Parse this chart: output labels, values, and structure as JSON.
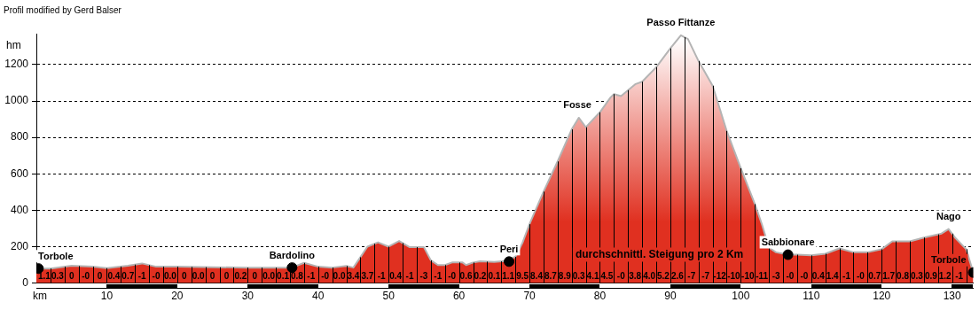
{
  "chart_data": {
    "type": "area",
    "title": "Profil modified by Gerd Balser",
    "xlabel": "km",
    "ylabel": "hm",
    "xlim": [
      0,
      133
    ],
    "xticks": [
      10,
      20,
      30,
      40,
      50,
      60,
      70,
      80,
      90,
      100,
      110,
      120,
      130
    ],
    "ylim": [
      0,
      1370
    ],
    "yticks": [
      0,
      200,
      400,
      600,
      800,
      1000,
      1200
    ],
    "grid": "y",
    "legend": false,
    "series": [
      {
        "color": "#e03020",
        "x": [
          0,
          2,
          5,
          8,
          10,
          13,
          15,
          17,
          20,
          25,
          30,
          36.3,
          38,
          40,
          42,
          44,
          45,
          46,
          47,
          48.5,
          50,
          51.5,
          53,
          55,
          56,
          57,
          58,
          59,
          60.5,
          61,
          62,
          63,
          65,
          66.5,
          68,
          69,
          70,
          72,
          74,
          76,
          77,
          78,
          80,
          81.5,
          82,
          83,
          85,
          86,
          88,
          90,
          91.5,
          92.5,
          94,
          96,
          98,
          100,
          102,
          103,
          104,
          105,
          106.7,
          108,
          110,
          112,
          114,
          116,
          118,
          120,
          121.5,
          124,
          126,
          128.5,
          129.5,
          130.5,
          132,
          133
        ],
        "values": [
          80,
          80,
          95,
          90,
          82,
          95,
          108,
          90,
          90,
          87,
          85,
          85,
          111,
          90,
          85,
          94,
          85,
          142,
          200,
          224,
          200,
          231,
          197,
          198,
          125,
          99,
          99,
          113,
          113,
          99,
          113,
          120,
          116,
          121,
          144,
          220,
          323,
          502,
          668,
          844,
          908,
          856,
          938,
          1019,
          1038,
          1027,
          1092,
          1106,
          1186,
          1289,
          1361,
          1340,
          1220,
          1084,
          836,
          631,
          434,
          323,
          195,
          169,
          156,
          156,
          152,
          161,
          190,
          169,
          169,
          186,
          229,
          229,
          250,
          272,
          297,
          246,
          186,
          58
        ]
      },
      {
        "type": "scatter",
        "color": "#000000",
        "marker": "circle",
        "x": [
          0.3,
          36.3,
          67.1,
          106.7,
          133
        ],
        "values": [
          80,
          85,
          118,
          156,
          58
        ]
      }
    ],
    "annotations": [
      "durchschnittl. Steigung pro 2 Km",
      {
        "text": "Torbole",
        "x": 0.3,
        "y": 80
      },
      {
        "text": "Bardolino",
        "x": 36.3,
        "y": 85
      },
      {
        "text": "Peri",
        "x": 67.1,
        "y": 118
      },
      {
        "text": "Fosse",
        "x": 76.8,
        "y": 908
      },
      {
        "text": "Passo Fittanze",
        "x": 91.5,
        "y": 1361
      },
      {
        "text": "Sabbionare",
        "x": 106.7,
        "y": 156
      },
      {
        "text": "Nago",
        "x": 129.5,
        "y": 297
      },
      {
        "text": "Torbole",
        "x": 133,
        "y": 58
      },
      {
        "text": "1.1",
        "x": 1,
        "y": 10
      },
      {
        "text": "0.3",
        "x": 3,
        "y": 10
      },
      {
        "text": "0",
        "x": 5,
        "y": 10
      },
      {
        "text": "-0",
        "x": 7,
        "y": 10
      },
      {
        "text": "0",
        "x": 9,
        "y": 10
      },
      {
        "text": "0.4",
        "x": 11,
        "y": 10
      },
      {
        "text": "0.7",
        "x": 13,
        "y": 10
      },
      {
        "text": "-1",
        "x": 15,
        "y": 10
      },
      {
        "text": "-0",
        "x": 17,
        "y": 10
      },
      {
        "text": "0.0",
        "x": 19,
        "y": 10
      },
      {
        "text": "0",
        "x": 21,
        "y": 10
      },
      {
        "text": "0.0",
        "x": 23,
        "y": 10
      },
      {
        "text": "0",
        "x": 25,
        "y": 10
      },
      {
        "text": "0",
        "x": 27,
        "y": 10
      },
      {
        "text": "0.2",
        "x": 29,
        "y": 10
      },
      {
        "text": "0",
        "x": 31,
        "y": 10
      },
      {
        "text": "0.0",
        "x": 33,
        "y": 10
      },
      {
        "text": "0.1",
        "x": 35,
        "y": 10
      },
      {
        "text": "0.8",
        "x": 37,
        "y": 10
      },
      {
        "text": "-1",
        "x": 39,
        "y": 10
      },
      {
        "text": "-0",
        "x": 41,
        "y": 10
      },
      {
        "text": "0.0",
        "x": 43,
        "y": 10
      },
      {
        "text": "3.4",
        "x": 45,
        "y": 10
      },
      {
        "text": "3.7",
        "x": 47,
        "y": 10
      },
      {
        "text": "-1",
        "x": 49,
        "y": 10
      },
      {
        "text": "0.4",
        "x": 51,
        "y": 10
      },
      {
        "text": "-1",
        "x": 53,
        "y": 10
      },
      {
        "text": "-3",
        "x": 55,
        "y": 10
      },
      {
        "text": "-1",
        "x": 57,
        "y": 10
      },
      {
        "text": "-0",
        "x": 59,
        "y": 10
      },
      {
        "text": "0.6",
        "x": 61,
        "y": 10
      },
      {
        "text": "0.2",
        "x": 63,
        "y": 10
      },
      {
        "text": "0.1",
        "x": 65,
        "y": 10
      },
      {
        "text": "1.1",
        "x": 67,
        "y": 10
      },
      {
        "text": "9.5",
        "x": 69,
        "y": 10
      },
      {
        "text": "8.4",
        "x": 71,
        "y": 10
      },
      {
        "text": "8.7",
        "x": 73,
        "y": 10
      },
      {
        "text": "8.9",
        "x": 75,
        "y": 10
      },
      {
        "text": "0.3",
        "x": 77,
        "y": 10
      },
      {
        "text": "4.1",
        "x": 79,
        "y": 10
      },
      {
        "text": "4.5",
        "x": 81,
        "y": 10
      },
      {
        "text": "-0",
        "x": 83,
        "y": 10
      },
      {
        "text": "3.8",
        "x": 85,
        "y": 10
      },
      {
        "text": "4.0",
        "x": 87,
        "y": 10
      },
      {
        "text": "5.2",
        "x": 89,
        "y": 10
      },
      {
        "text": "2.6",
        "x": 91,
        "y": 10
      },
      {
        "text": "-7",
        "x": 93,
        "y": 10
      },
      {
        "text": "-7",
        "x": 95,
        "y": 10
      },
      {
        "text": "-12",
        "x": 97,
        "y": 10
      },
      {
        "text": "-10",
        "x": 99,
        "y": 10
      },
      {
        "text": "-10",
        "x": 101,
        "y": 10
      },
      {
        "text": "-11",
        "x": 103,
        "y": 10
      },
      {
        "text": "-3",
        "x": 105,
        "y": 10
      },
      {
        "text": "-0",
        "x": 107,
        "y": 10
      },
      {
        "text": "-0",
        "x": 109,
        "y": 10
      },
      {
        "text": "0.4",
        "x": 111,
        "y": 10
      },
      {
        "text": "1.4",
        "x": 113,
        "y": 10
      },
      {
        "text": "-1",
        "x": 115,
        "y": 10
      },
      {
        "text": "-0",
        "x": 117,
        "y": 10
      },
      {
        "text": "0.7",
        "x": 119,
        "y": 10
      },
      {
        "text": "1.7",
        "x": 121,
        "y": 10
      },
      {
        "text": "0.8",
        "x": 123,
        "y": 10
      },
      {
        "text": "0.3",
        "x": 125,
        "y": 10
      },
      {
        "text": "0.9",
        "x": 127,
        "y": 10
      },
      {
        "text": "1.2",
        "x": 129,
        "y": 10
      },
      {
        "text": "-1",
        "x": 131,
        "y": 10
      }
    ]
  }
}
